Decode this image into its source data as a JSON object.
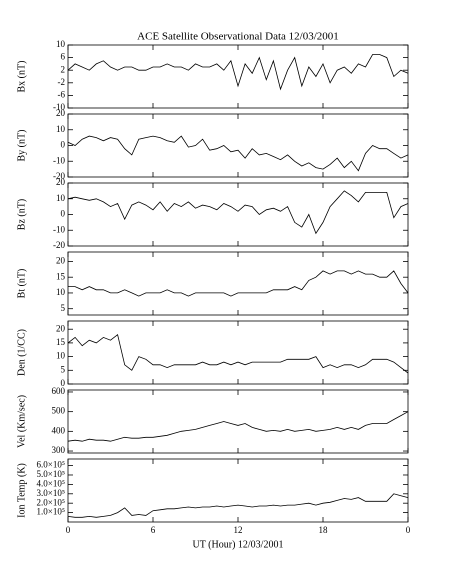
{
  "title": "ACE Satellite Observational Data   12/03/2001",
  "xlabel": "UT (Hour)   12/03/2001",
  "xlim": [
    0,
    24
  ],
  "xticks": [
    0,
    6,
    12,
    18,
    {
      "value": 24,
      "label": "0"
    }
  ],
  "x": [
    0,
    0.5,
    1,
    1.5,
    2,
    2.5,
    3,
    3.5,
    4,
    4.5,
    5,
    5.5,
    6,
    6.5,
    7,
    7.5,
    8,
    8.5,
    9,
    9.5,
    10,
    10.5,
    11,
    11.5,
    12,
    12.5,
    13,
    13.5,
    14,
    14.5,
    15,
    15.5,
    16,
    16.5,
    17,
    17.5,
    18,
    18.5,
    19,
    19.5,
    20,
    20.5,
    21,
    21.5,
    22,
    22.5,
    23,
    23.5,
    24
  ],
  "chart_data": [
    {
      "type": "line",
      "ylabel": "Bx (nT)",
      "color": "#000000",
      "ylim": [
        -10,
        10
      ],
      "yticks": [
        -10,
        -6,
        -2,
        2,
        6,
        10
      ],
      "values": [
        2,
        4,
        3,
        2,
        4,
        5,
        3,
        2,
        3,
        3,
        2,
        2,
        3,
        3,
        4,
        3,
        3,
        2,
        4,
        3,
        3,
        4,
        2,
        5,
        -3,
        4,
        1,
        6,
        -1,
        5,
        -4,
        2,
        6,
        -3,
        3,
        0,
        4,
        -2,
        2,
        3,
        1,
        4,
        3,
        7,
        7,
        6,
        0,
        2,
        1
      ]
    },
    {
      "type": "line",
      "ylabel": "By (nT)",
      "color": "#000000",
      "ylim": [
        -20,
        20
      ],
      "yticks": [
        -20,
        -10,
        0,
        10,
        20
      ],
      "values": [
        2,
        0,
        4,
        6,
        5,
        3,
        5,
        4,
        -2,
        -6,
        4,
        5,
        6,
        5,
        3,
        2,
        6,
        -1,
        0,
        4,
        -3,
        -2,
        0,
        -4,
        -3,
        -8,
        -2,
        -6,
        -5,
        -7,
        -9,
        -6,
        -10,
        -13,
        -11,
        -14,
        -15,
        -12,
        -8,
        -14,
        -10,
        -16,
        -5,
        0,
        -2,
        -2,
        -5,
        -8,
        -6
      ]
    },
    {
      "type": "line",
      "ylabel": "Bz (nT)",
      "color": "#000000",
      "ylim": [
        -20,
        20
      ],
      "yticks": [
        -20,
        -10,
        0,
        10,
        20
      ],
      "values": [
        10,
        11,
        10,
        9,
        10,
        8,
        5,
        7,
        -3,
        6,
        8,
        6,
        3,
        8,
        2,
        7,
        5,
        8,
        4,
        6,
        5,
        3,
        7,
        5,
        2,
        6,
        5,
        0,
        3,
        4,
        2,
        5,
        -5,
        -8,
        0,
        -12,
        -5,
        5,
        10,
        15,
        12,
        8,
        14,
        14,
        14,
        14,
        -2,
        5,
        7
      ]
    },
    {
      "type": "line",
      "ylabel": "Bt (nT)",
      "color": "#000000",
      "ylim": [
        3,
        23
      ],
      "yticks": [
        5,
        10,
        15,
        20
      ],
      "values": [
        12,
        12,
        11,
        12,
        11,
        11,
        10,
        10,
        11,
        10,
        9,
        10,
        10,
        10,
        11,
        10,
        10,
        9,
        10,
        10,
        10,
        10,
        10,
        9,
        10,
        10,
        10,
        10,
        10,
        11,
        11,
        11,
        12,
        11,
        14,
        15,
        17,
        16,
        17,
        17,
        16,
        17,
        16,
        16,
        15,
        15,
        17,
        13,
        10
      ]
    },
    {
      "type": "line",
      "ylabel": "Den (1/CC)",
      "color": "#000000",
      "ylim": [
        0,
        23
      ],
      "yticks": [
        0,
        5,
        10,
        15,
        20
      ],
      "values": [
        15,
        17,
        14,
        16,
        15,
        17,
        16,
        18,
        7,
        5,
        10,
        9,
        7,
        7,
        6,
        7,
        7,
        7,
        7,
        8,
        7,
        7,
        8,
        7,
        8,
        7,
        8,
        8,
        8,
        8,
        8,
        9,
        9,
        9,
        9,
        10,
        6,
        7,
        6,
        7,
        7,
        6,
        7,
        9,
        9,
        9,
        8,
        6,
        4
      ]
    },
    {
      "type": "line",
      "ylabel": "Vel (Km/sec)",
      "color": "#000000",
      "ylim": [
        290,
        610
      ],
      "yticks": [
        300,
        400,
        500,
        600
      ],
      "values": [
        350,
        355,
        350,
        360,
        355,
        355,
        350,
        360,
        370,
        365,
        365,
        370,
        370,
        375,
        380,
        390,
        400,
        405,
        410,
        420,
        430,
        440,
        450,
        440,
        430,
        440,
        420,
        410,
        400,
        405,
        400,
        410,
        400,
        405,
        410,
        400,
        405,
        410,
        420,
        410,
        420,
        410,
        430,
        440,
        440,
        440,
        460,
        480,
        500
      ]
    },
    {
      "type": "line",
      "ylabel": "Ion Temp (K)",
      "color": "#000000",
      "ylim": [
        0,
        670000
      ],
      "yticks": [
        {
          "value": 100000,
          "label": "1.0×10⁵"
        },
        {
          "value": 200000,
          "label": "2.0×10⁵"
        },
        {
          "value": 300000,
          "label": "3.0×10⁵"
        },
        {
          "value": 400000,
          "label": "4.0×10⁵"
        },
        {
          "value": 500000,
          "label": "5.0×10⁵"
        },
        {
          "value": 600000,
          "label": "6.0×10⁵"
        }
      ],
      "values": [
        60000,
        50000,
        50000,
        60000,
        50000,
        60000,
        70000,
        100000,
        150000,
        70000,
        80000,
        70000,
        120000,
        130000,
        140000,
        140000,
        150000,
        160000,
        150000,
        160000,
        160000,
        170000,
        160000,
        170000,
        180000,
        170000,
        160000,
        170000,
        170000,
        180000,
        170000,
        180000,
        180000,
        190000,
        200000,
        180000,
        200000,
        210000,
        230000,
        250000,
        240000,
        260000,
        220000,
        220000,
        220000,
        220000,
        300000,
        280000,
        260000
      ]
    }
  ]
}
